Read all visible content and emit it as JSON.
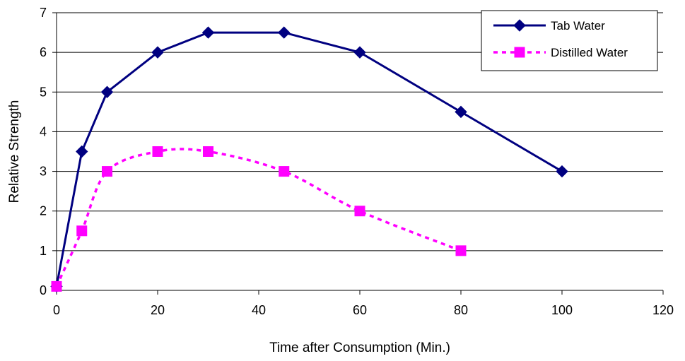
{
  "chart_data": {
    "type": "line",
    "xlabel": "Time after Consumption (Min.)",
    "ylabel": "Relative Strength",
    "xlim": [
      0,
      120
    ],
    "ylim": [
      0,
      7
    ],
    "xticks": [
      0,
      20,
      40,
      60,
      80,
      100,
      120
    ],
    "yticks": [
      0,
      1,
      2,
      3,
      4,
      5,
      6,
      7
    ],
    "grid": "horizontal",
    "legend_position": "top-right",
    "series": [
      {
        "name": "Tab Water",
        "color": "#000080",
        "marker": "diamond",
        "line_style": "solid",
        "smooth": false,
        "points": [
          [
            0,
            0.1
          ],
          [
            5,
            3.5
          ],
          [
            10,
            5
          ],
          [
            20,
            6
          ],
          [
            30,
            6.5
          ],
          [
            45,
            6.5
          ],
          [
            60,
            6
          ],
          [
            80,
            4.5
          ],
          [
            100,
            3
          ]
        ]
      },
      {
        "name": "Distilled Water",
        "color": "#FF00FF",
        "marker": "square",
        "line_style": "dashed",
        "smooth": true,
        "points": [
          [
            0,
            0.1
          ],
          [
            5,
            1.5
          ],
          [
            10,
            3
          ],
          [
            20,
            3.5
          ],
          [
            30,
            3.5
          ],
          [
            45,
            3
          ],
          [
            60,
            2
          ],
          [
            80,
            1
          ]
        ]
      }
    ]
  }
}
